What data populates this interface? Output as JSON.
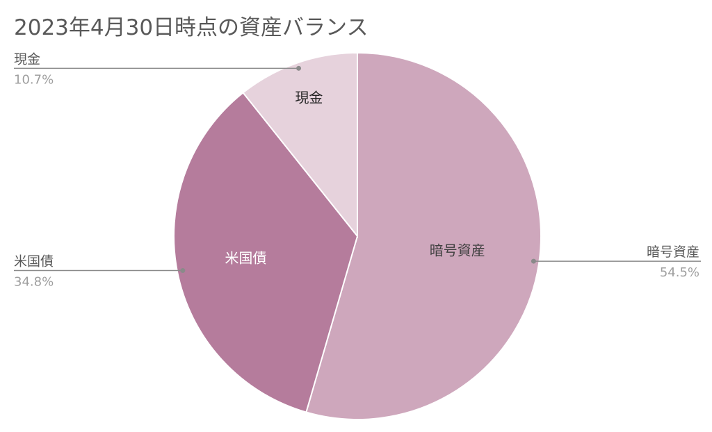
{
  "chart_data": {
    "type": "pie",
    "title": "2023年4月30日時点の資産バランス",
    "slices": [
      {
        "label": "暗号資産",
        "value": 54.5,
        "percent_label": "54.5%",
        "color": "#cea7bc",
        "inner_text_color": "#3f3f3f"
      },
      {
        "label": "米国債",
        "value": 34.8,
        "percent_label": "34.8%",
        "color": "#b57c9c",
        "inner_text_color": "#ffffff"
      },
      {
        "label": "現金",
        "value": 10.7,
        "percent_label": "10.7%",
        "color": "#e6d2dc",
        "inner_text_color": "#222222"
      }
    ],
    "start_angle_deg": 0,
    "direction": "clockwise",
    "legend": "none"
  },
  "colors": {
    "title": "#595959",
    "callout_line": "#8a8a8a",
    "callout_name": "#595959",
    "callout_percent": "#9e9e9e"
  }
}
